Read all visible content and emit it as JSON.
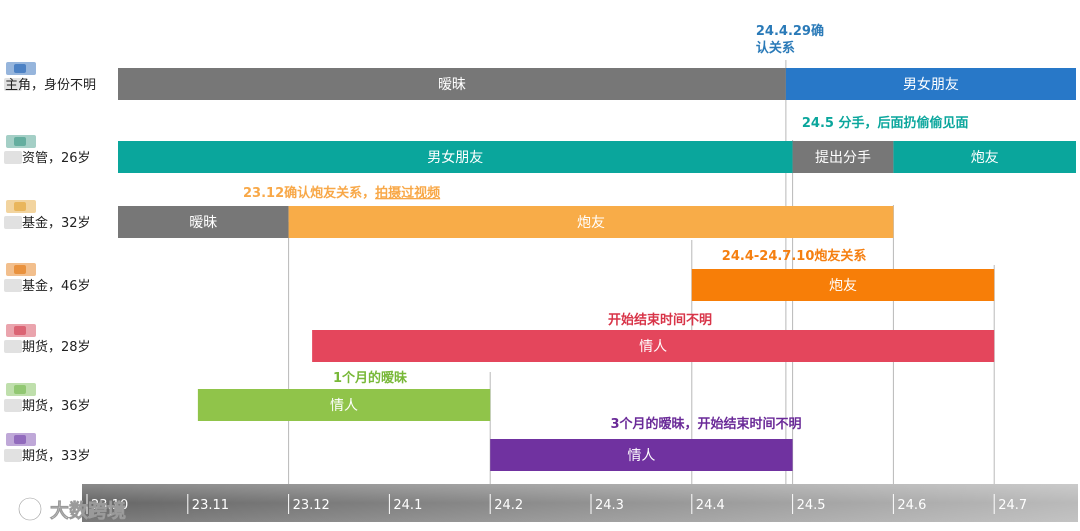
{
  "chart_data": {
    "type": "gantt",
    "x_ticks": [
      "23.10",
      "23.11",
      "23.12",
      "24.1",
      "24.2",
      "24.3",
      "24.4",
      "24.5",
      "24.6",
      "24.7"
    ],
    "rows": [
      {
        "label": "主角，身份不明",
        "avatar_color": "#3f78c0",
        "segments": [
          {
            "start": "23.10",
            "end": "24.4.29",
            "label": "暧昧",
            "color": "#777777"
          },
          {
            "start": "24.4.29",
            "end": "24.8",
            "label": "男女朋友",
            "color": "#2878c8"
          }
        ],
        "annotation": {
          "text": "24.4.29确认关系",
          "color": "#2a7ab8"
        }
      },
      {
        "label": "资管，26岁",
        "avatar_color": "#5aa898",
        "segments": [
          {
            "start": "23.10",
            "end": "24.5",
            "label": "男女朋友",
            "color": "#0aa69c"
          },
          {
            "start": "24.5",
            "end": "24.6",
            "label": "提出分手",
            "color": "#777777"
          },
          {
            "start": "24.6",
            "end": "24.8",
            "label": "炮友",
            "color": "#0aa69c"
          }
        ],
        "annotation": {
          "text": "24.5 分手，后面扔偷偷见面",
          "color": "#0aa69c"
        }
      },
      {
        "label": "基金，32岁",
        "avatar_color": "#e8b050",
        "segments": [
          {
            "start": "23.10",
            "end": "23.12",
            "label": "暧昧",
            "color": "#777777"
          },
          {
            "start": "23.12",
            "end": "24.6",
            "label": "炮友",
            "color": "#f8ac48"
          }
        ],
        "annotation": {
          "text": "23.12确认炮友关系，",
          "highlight": "拍摄过视频",
          "color": "#f8a848"
        }
      },
      {
        "label": "基金，46岁",
        "avatar_color": "#e88a30",
        "segments": [
          {
            "start": "24.4",
            "end": "24.7",
            "label": "炮友",
            "color": "#f77e08"
          }
        ],
        "annotation": {
          "text": "24.4-24.7.10炮友关系",
          "color": "#f57f10"
        }
      },
      {
        "label": "期货，28岁",
        "avatar_color": "#d85a6a",
        "segments": [
          {
            "start": "23.12.8",
            "end": "24.7",
            "label": "情人",
            "color": "#e4465c"
          }
        ],
        "annotation": {
          "text": "开始结束时间不明",
          "color": "#d83448"
        }
      },
      {
        "label": "期货，36岁",
        "avatar_color": "#8ac468",
        "segments": [
          {
            "start": "23.11.4",
            "end": "24.2",
            "label": "情人",
            "color": "#90c44a"
          }
        ],
        "annotation": {
          "text": "1个月的暧昧",
          "color": "#78b838"
        }
      },
      {
        "label": "期货，33岁",
        "avatar_color": "#8a60b8",
        "segments": [
          {
            "start": "24.2",
            "end": "24.5",
            "label": "情人",
            "color": "#7032a0"
          }
        ],
        "annotation": {
          "text": "3个月的暧昧，开始结束时间不明",
          "color": "#6a2a98"
        }
      }
    ],
    "grid": true
  },
  "watermark": {
    "text": "大数跨境"
  }
}
